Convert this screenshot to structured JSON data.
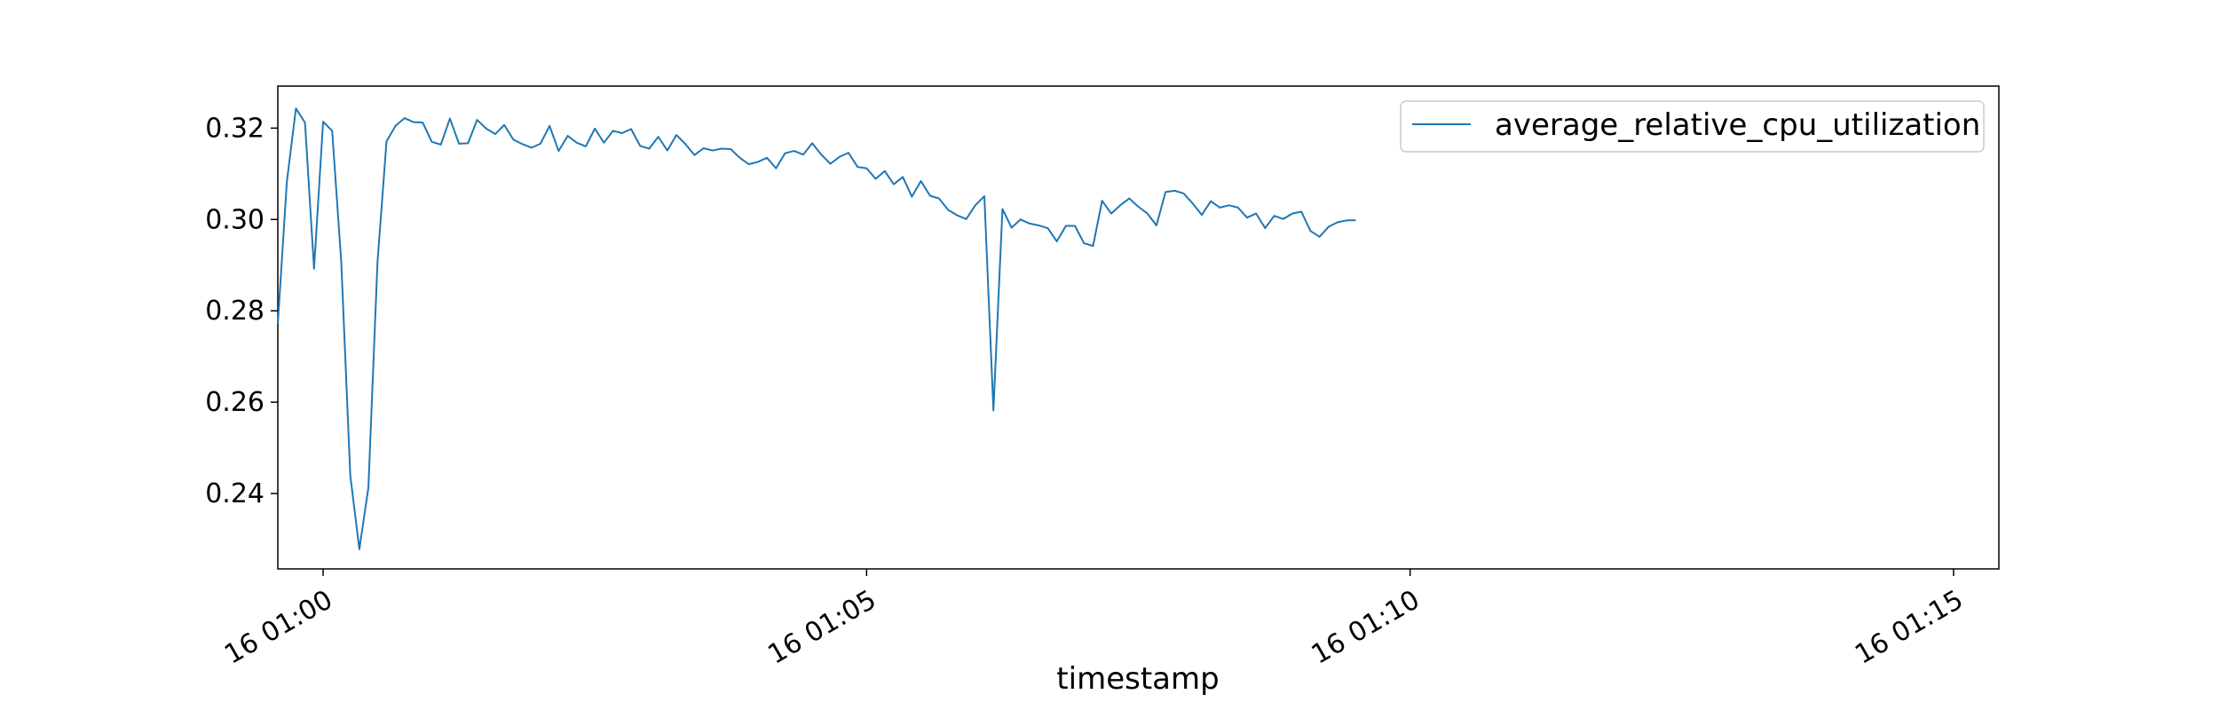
{
  "chart_data": {
    "type": "line",
    "title": "",
    "xlabel": "timestamp",
    "ylabel": "",
    "x_start": "2025-01-16T00:59:35",
    "x_step_seconds": 5,
    "xlim": [
      "2025-01-16T00:59:35",
      "2025-01-16T01:15:25"
    ],
    "ylim": [
      0.2235,
      0.3292
    ],
    "x_ticks": [
      {
        "value": "2025-01-16T01:00:00",
        "label": "16 01:00"
      },
      {
        "value": "2025-01-16T01:05:00",
        "label": "16 01:05"
      },
      {
        "value": "2025-01-16T01:10:00",
        "label": "16 01:10"
      },
      {
        "value": "2025-01-16T01:15:00",
        "label": "16 01:15"
      }
    ],
    "y_ticks": [
      {
        "value": 0.24,
        "label": "0.24"
      },
      {
        "value": 0.26,
        "label": "0.26"
      },
      {
        "value": 0.28,
        "label": "0.28"
      },
      {
        "value": 0.3,
        "label": "0.30"
      },
      {
        "value": 0.32,
        "label": "0.32"
      }
    ],
    "grid": false,
    "legend_position": "upper right",
    "series": [
      {
        "name": "average_relative_cpu_utilization",
        "color": "#1f77b4",
        "values": [
          0.2772,
          0.3083,
          0.3243,
          0.3212,
          0.2892,
          0.3214,
          0.3194,
          0.2908,
          0.244,
          0.2278,
          0.2413,
          0.2905,
          0.3171,
          0.3205,
          0.3222,
          0.3213,
          0.3212,
          0.317,
          0.3164,
          0.3221,
          0.3166,
          0.3167,
          0.3218,
          0.3199,
          0.3187,
          0.3207,
          0.3175,
          0.3165,
          0.3157,
          0.3166,
          0.3205,
          0.315,
          0.3183,
          0.3168,
          0.316,
          0.3199,
          0.3168,
          0.3194,
          0.3189,
          0.3198,
          0.3161,
          0.3155,
          0.3181,
          0.3151,
          0.3185,
          0.3165,
          0.3141,
          0.3156,
          0.3151,
          0.3155,
          0.3154,
          0.3135,
          0.3121,
          0.3126,
          0.3135,
          0.3112,
          0.3145,
          0.315,
          0.3142,
          0.3167,
          0.3142,
          0.3122,
          0.3137,
          0.3146,
          0.3115,
          0.3112,
          0.3089,
          0.3106,
          0.3077,
          0.3093,
          0.305,
          0.3084,
          0.3052,
          0.3046,
          0.3021,
          0.3009,
          0.3001,
          0.3031,
          0.3051,
          0.2582,
          0.3023,
          0.2982,
          0.3,
          0.2991,
          0.2987,
          0.2981,
          0.2952,
          0.2986,
          0.2986,
          0.2948,
          0.2942,
          0.3041,
          0.3013,
          0.3031,
          0.3046,
          0.3028,
          0.3013,
          0.2987,
          0.306,
          0.3063,
          0.3057,
          0.3035,
          0.301,
          0.304,
          0.3026,
          0.3031,
          0.3026,
          0.3004,
          0.3013,
          0.2981,
          0.3008,
          0.3001,
          0.3013,
          0.3017,
          0.2975,
          0.2962,
          0.2984,
          0.2994,
          0.2998,
          0.2998
        ]
      }
    ]
  }
}
